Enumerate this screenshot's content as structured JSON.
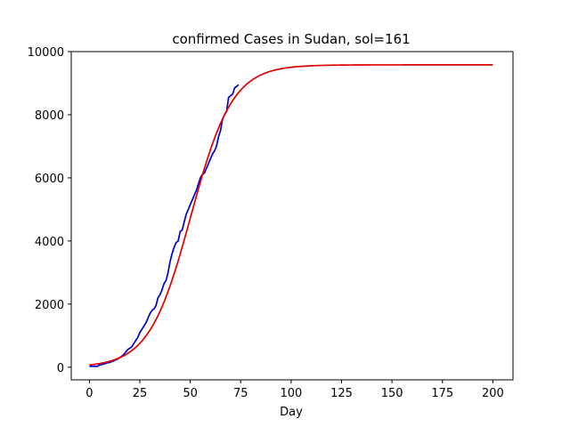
{
  "chart_data": {
    "type": "line",
    "title": "confirmed Cases in Sudan, sol=161",
    "xlabel": "Day",
    "ylabel": "",
    "xlim": [
      -9,
      210
    ],
    "ylim": [
      -400,
      10000
    ],
    "xticks": [
      0,
      25,
      50,
      75,
      100,
      125,
      150,
      175,
      200
    ],
    "yticks": [
      0,
      2000,
      4000,
      6000,
      8000,
      10000
    ],
    "grid": false,
    "series": [
      {
        "color": "#0000cc",
        "x": [
          0,
          1,
          2,
          3,
          4,
          5,
          6,
          7,
          8,
          9,
          10,
          11,
          12,
          13,
          14,
          15,
          16,
          17,
          18,
          19,
          20,
          21,
          22,
          23,
          24,
          25,
          26,
          27,
          28,
          29,
          30,
          31,
          32,
          33,
          34,
          35,
          36,
          37,
          38,
          39,
          40,
          41,
          42,
          43,
          44,
          45,
          46,
          47,
          48,
          49,
          50,
          51,
          52,
          53,
          54,
          55,
          56,
          57,
          58,
          59,
          60,
          61,
          62,
          63,
          64,
          65,
          66,
          67,
          68,
          69,
          70,
          71,
          72,
          73,
          74
        ],
        "y": [
          30,
          30,
          30,
          30,
          30,
          70,
          80,
          100,
          120,
          140,
          150,
          180,
          200,
          230,
          260,
          300,
          350,
          400,
          480,
          560,
          600,
          650,
          750,
          850,
          950,
          1100,
          1200,
          1300,
          1400,
          1550,
          1700,
          1800,
          1850,
          1950,
          2200,
          2300,
          2450,
          2650,
          2750,
          3000,
          3350,
          3600,
          3800,
          3950,
          4000,
          4300,
          4350,
          4600,
          4850,
          5000,
          5150,
          5300,
          5450,
          5600,
          5800,
          6000,
          6100,
          6150,
          6300,
          6450,
          6600,
          6750,
          6850,
          7000,
          7300,
          7500,
          7850,
          8000,
          8100,
          8550,
          8600,
          8650,
          8850,
          8900,
          8950
        ]
      },
      {
        "color": "#dd0000",
        "logistic": {
          "K": 9580,
          "r": 0.097,
          "x0": 50.3
        },
        "x_range": [
          0,
          200
        ]
      }
    ]
  }
}
